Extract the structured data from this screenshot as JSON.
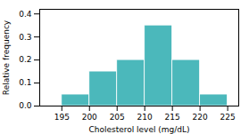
{
  "chart_data": {
    "type": "histogram",
    "bins": [
      195,
      200,
      205,
      210,
      215,
      220,
      225
    ],
    "values": [
      0.05,
      0.15,
      0.2,
      0.35,
      0.2,
      0.05
    ],
    "color": "#4bb8bb",
    "xlabel": "Cholesterol level (mg/dL)",
    "ylabel": "Relative frequency",
    "xlim": [
      191,
      227
    ],
    "ylim": [
      0.0,
      0.42
    ],
    "xticks": [
      195,
      200,
      205,
      210,
      215,
      220,
      225
    ],
    "yticks": [
      {
        "value": 0.0,
        "label": "0.0"
      },
      {
        "value": 0.1,
        "label": "0.1"
      },
      {
        "value": 0.2,
        "label": "0.2"
      },
      {
        "value": 0.3,
        "label": "0.3"
      },
      {
        "value": 0.4,
        "label": "0.4"
      }
    ]
  }
}
